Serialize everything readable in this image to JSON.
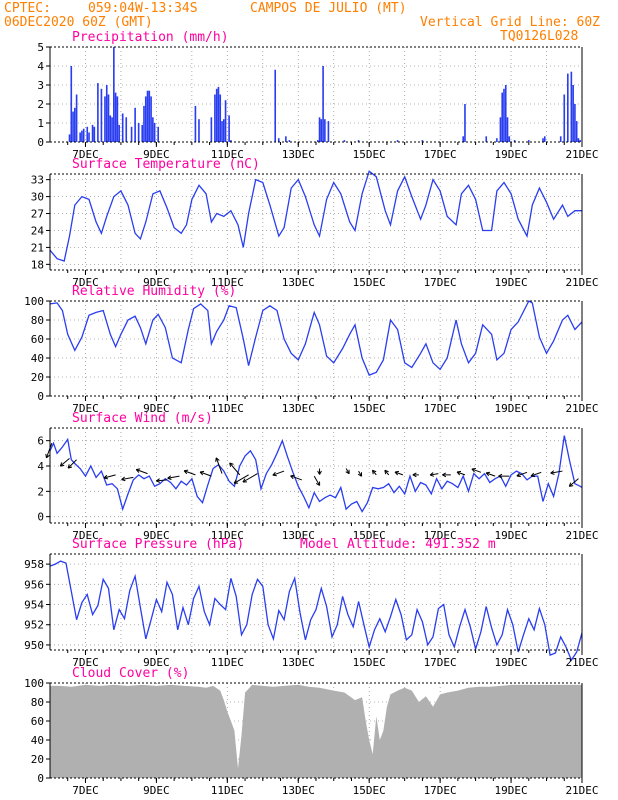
{
  "header": {
    "source": "CPTEC:",
    "coords": "059:04W-13:34S",
    "station": "CAMPOS DE JULIO (MT)",
    "run": "06DEC2020 60Z (GMT)",
    "grid_note": "Vertical Grid Line: 60Z",
    "model": "TQ0126L028"
  },
  "time_axis": {
    "start_day": 6,
    "end_day": 21,
    "tick_labels": [
      "7DEC",
      "9DEC",
      "11DEC",
      "13DEC",
      "15DEC",
      "17DEC",
      "19DEC",
      "21DEC"
    ]
  },
  "colors": {
    "series": "#2a3ef0",
    "titles": "#ff00a0",
    "header": "#ff7f00",
    "cloud": "#b0b0b0"
  },
  "chart_data": [
    {
      "id": "precip",
      "type": "bar",
      "title": "Precipitation (mm/h)",
      "ylim": [
        0,
        5
      ],
      "yticks": [
        0,
        1,
        2,
        3,
        4,
        5
      ],
      "x": [
        6.55,
        6.6,
        6.65,
        6.7,
        6.75,
        6.85,
        6.9,
        6.95,
        7.05,
        7.1,
        7.2,
        7.25,
        7.35,
        7.45,
        7.55,
        7.6,
        7.65,
        7.7,
        7.75,
        7.8,
        7.85,
        7.9,
        7.95,
        8.05,
        8.15,
        8.3,
        8.4,
        8.5,
        8.6,
        8.65,
        8.7,
        8.75,
        8.8,
        8.85,
        8.9,
        8.95,
        9.05,
        10.1,
        10.2,
        10.55,
        10.65,
        10.7,
        10.75,
        10.8,
        10.85,
        10.9,
        10.95,
        11.05,
        11.1,
        12.35,
        12.45,
        12.65,
        12.75,
        13.55,
        13.6,
        13.65,
        13.7,
        13.75,
        13.85,
        14.3,
        14.7,
        15.8,
        16.5,
        17.65,
        17.7,
        18.3,
        18.6,
        18.7,
        18.75,
        18.8,
        18.85,
        18.9,
        18.95,
        19.1,
        19.5,
        19.9,
        19.95,
        20.4,
        20.5,
        20.6,
        20.7,
        20.75,
        20.8,
        20.85,
        20.9,
        20.95
      ],
      "values": [
        0.4,
        4.0,
        1.6,
        1.8,
        2.5,
        0.5,
        0.6,
        0.7,
        0.8,
        0.5,
        0.9,
        0.8,
        3.1,
        2.8,
        2.4,
        3.0,
        2.5,
        1.4,
        1.3,
        5.0,
        2.6,
        2.4,
        0.9,
        1.5,
        1.3,
        0.8,
        1.8,
        1.0,
        0.9,
        1.9,
        2.4,
        2.7,
        2.7,
        2.4,
        1.3,
        1.0,
        0.8,
        1.9,
        1.2,
        1.3,
        2.5,
        2.8,
        2.9,
        2.5,
        1.1,
        1.2,
        2.2,
        1.4,
        0.1,
        3.8,
        0.2,
        0.3,
        0.1,
        0.1,
        1.3,
        1.2,
        4.0,
        1.2,
        1.1,
        0.1,
        0.1,
        0.1,
        0.1,
        0.3,
        2.0,
        0.3,
        0.2,
        1.3,
        2.6,
        2.8,
        3.0,
        1.3,
        0.3,
        0.1,
        0.1,
        0.2,
        0.3,
        0.3,
        2.5,
        3.6,
        3.7,
        3.0,
        2.0,
        1.1,
        0.2,
        0.1
      ]
    },
    {
      "id": "temp",
      "type": "line",
      "title": "Surface Temperature (nC)",
      "ylim": [
        17,
        34
      ],
      "yticks": [
        18,
        21,
        24,
        27,
        30,
        33
      ],
      "x": [
        6.0,
        6.2,
        6.4,
        6.55,
        6.7,
        6.9,
        7.1,
        7.3,
        7.45,
        7.6,
        7.8,
        8.0,
        8.2,
        8.4,
        8.55,
        8.7,
        8.9,
        9.1,
        9.3,
        9.5,
        9.7,
        9.85,
        10.0,
        10.2,
        10.4,
        10.55,
        10.7,
        10.9,
        11.1,
        11.3,
        11.45,
        11.6,
        11.8,
        12.0,
        12.2,
        12.45,
        12.6,
        12.8,
        13.0,
        13.2,
        13.45,
        13.6,
        13.8,
        14.0,
        14.2,
        14.45,
        14.6,
        14.8,
        15.0,
        15.2,
        15.45,
        15.6,
        15.8,
        16.0,
        16.2,
        16.45,
        16.6,
        16.8,
        17.0,
        17.2,
        17.45,
        17.6,
        17.8,
        18.0,
        18.2,
        18.45,
        18.6,
        18.8,
        19.0,
        19.2,
        19.45,
        19.6,
        19.8,
        20.0,
        20.2,
        20.45,
        20.6,
        20.8,
        21.0
      ],
      "values": [
        20.5,
        19.0,
        18.6,
        23.0,
        28.5,
        30.0,
        29.5,
        25.5,
        23.5,
        26.5,
        30.0,
        31.0,
        28.5,
        23.5,
        22.5,
        25.5,
        30.5,
        31.0,
        28.0,
        24.5,
        23.5,
        25.0,
        29.5,
        32.0,
        30.5,
        25.5,
        27.0,
        26.5,
        27.5,
        25.0,
        21.0,
        27.0,
        33.0,
        32.5,
        28.5,
        23.0,
        24.5,
        31.5,
        33.0,
        30.0,
        25.0,
        23.0,
        29.5,
        32.5,
        30.5,
        25.5,
        24.0,
        30.5,
        34.5,
        33.5,
        27.5,
        25.0,
        31.0,
        33.5,
        30.0,
        26.0,
        28.5,
        33.0,
        31.0,
        26.5,
        25.0,
        30.5,
        32.0,
        29.5,
        24.0,
        24.0,
        31.0,
        32.5,
        30.5,
        26.0,
        23.0,
        28.5,
        31.5,
        29.0,
        26.0,
        28.5,
        26.5,
        27.5,
        27.5
      ]
    },
    {
      "id": "rh",
      "type": "line",
      "title": "Relative Humidity (%)",
      "ylim": [
        0,
        100
      ],
      "yticks": [
        0,
        20,
        40,
        60,
        80,
        100
      ],
      "x": [
        6.0,
        6.2,
        6.35,
        6.5,
        6.7,
        6.9,
        7.1,
        7.3,
        7.5,
        7.7,
        7.85,
        8.0,
        8.2,
        8.4,
        8.55,
        8.7,
        8.9,
        9.05,
        9.25,
        9.45,
        9.7,
        9.9,
        10.05,
        10.25,
        10.45,
        10.55,
        10.7,
        10.9,
        11.05,
        11.25,
        11.45,
        11.6,
        11.8,
        12.0,
        12.2,
        12.4,
        12.6,
        12.8,
        13.0,
        13.2,
        13.45,
        13.6,
        13.8,
        14.0,
        14.25,
        14.45,
        14.6,
        14.8,
        15.0,
        15.2,
        15.4,
        15.6,
        15.8,
        16.0,
        16.2,
        16.45,
        16.6,
        16.8,
        17.0,
        17.2,
        17.45,
        17.6,
        17.8,
        18.0,
        18.2,
        18.45,
        18.6,
        18.8,
        19.0,
        19.2,
        19.5,
        19.6,
        19.8,
        20.0,
        20.2,
        20.45,
        20.6,
        20.8,
        21.0
      ],
      "values": [
        97,
        98,
        90,
        65,
        48,
        62,
        85,
        88,
        90,
        65,
        52,
        65,
        80,
        84,
        72,
        55,
        80,
        86,
        72,
        40,
        35,
        70,
        92,
        97,
        90,
        55,
        68,
        80,
        95,
        93,
        60,
        32,
        62,
        90,
        95,
        90,
        60,
        45,
        38,
        55,
        88,
        75,
        42,
        35,
        50,
        65,
        75,
        40,
        22,
        25,
        38,
        80,
        70,
        35,
        30,
        45,
        55,
        35,
        28,
        40,
        80,
        55,
        35,
        45,
        75,
        65,
        38,
        45,
        70,
        78,
        100,
        98,
        62,
        45,
        58,
        80,
        85,
        70,
        78
      ]
    },
    {
      "id": "wind",
      "type": "line",
      "title": "Surface Wind (m/s)",
      "ylim": [
        -0.5,
        7
      ],
      "yticks": [
        0,
        2,
        4,
        6
      ],
      "x": [
        6.0,
        6.1,
        6.2,
        6.35,
        6.5,
        6.6,
        6.7,
        6.85,
        7.0,
        7.15,
        7.3,
        7.45,
        7.6,
        7.75,
        7.9,
        8.05,
        8.2,
        8.35,
        8.5,
        8.65,
        8.8,
        8.95,
        9.1,
        9.25,
        9.4,
        9.55,
        9.7,
        9.85,
        10.0,
        10.15,
        10.3,
        10.45,
        10.6,
        10.75,
        10.9,
        11.05,
        11.2,
        11.35,
        11.5,
        11.65,
        11.8,
        11.95,
        12.1,
        12.25,
        12.4,
        12.55,
        12.7,
        12.85,
        13.0,
        13.15,
        13.3,
        13.45,
        13.6,
        13.75,
        13.9,
        14.05,
        14.2,
        14.35,
        14.5,
        14.65,
        14.8,
        14.95,
        15.1,
        15.25,
        15.4,
        15.55,
        15.7,
        15.85,
        16.0,
        16.15,
        16.3,
        16.45,
        16.6,
        16.75,
        16.9,
        17.05,
        17.2,
        17.35,
        17.5,
        17.65,
        17.8,
        17.95,
        18.1,
        18.25,
        18.4,
        18.55,
        18.7,
        18.85,
        19.0,
        19.15,
        19.3,
        19.45,
        19.6,
        19.75,
        19.9,
        20.05,
        20.2,
        20.35,
        20.5,
        20.65,
        20.8,
        20.95,
        21.0
      ],
      "values": [
        5.2,
        5.8,
        5.0,
        5.5,
        6.1,
        4.5,
        4.2,
        3.8,
        3.2,
        4.0,
        3.1,
        3.6,
        2.5,
        2.6,
        2.2,
        0.6,
        1.8,
        2.9,
        3.3,
        3.0,
        3.2,
        2.4,
        2.6,
        3.0,
        2.7,
        2.2,
        2.8,
        2.5,
        3.0,
        1.6,
        1.1,
        2.5,
        3.8,
        4.1,
        3.6,
        2.8,
        2.4,
        4.0,
        4.8,
        5.2,
        4.5,
        2.2,
        3.4,
        4.1,
        5.0,
        6.0,
        4.7,
        3.5,
        2.4,
        1.6,
        0.7,
        1.9,
        1.2,
        1.5,
        1.7,
        1.5,
        2.3,
        0.6,
        1.0,
        1.2,
        0.4,
        1.1,
        2.3,
        2.2,
        2.3,
        2.6,
        1.9,
        2.4,
        1.8,
        3.2,
        2.0,
        2.7,
        2.5,
        1.8,
        3.0,
        2.2,
        2.8,
        2.6,
        2.3,
        3.2,
        2.0,
        3.4,
        3.0,
        3.4,
        2.7,
        3.0,
        3.2,
        2.4,
        3.3,
        3.6,
        3.4,
        2.9,
        3.2,
        3.2,
        1.2,
        2.6,
        1.6,
        3.4,
        6.4,
        4.4,
        2.6,
        2.4,
        2.3
      ],
      "arrows": {
        "x": [
          6.05,
          6.55,
          6.75,
          7.85,
          8.35,
          8.75,
          9.3,
          9.65,
          10.1,
          10.55,
          10.85,
          11.35,
          11.6,
          11.85,
          12.6,
          13.1,
          13.45,
          13.6,
          14.35,
          14.7,
          15.2,
          15.55,
          15.95,
          16.4,
          16.95,
          17.3,
          17.7,
          18.15,
          18.55,
          18.95,
          19.45,
          19.85,
          20.45,
          20.9
        ],
        "y": [
          5.8,
          4.6,
          4.5,
          3.3,
          3.1,
          3.4,
          2.9,
          3.2,
          3.3,
          3.2,
          3.4,
          3.3,
          3.3,
          3.4,
          3.6,
          2.9,
          3.2,
          3.8,
          3.8,
          3.6,
          3.3,
          3.3,
          3.3,
          3.3,
          3.4,
          3.3,
          3.3,
          3.5,
          3.2,
          3.2,
          3.5,
          3.5,
          3.6,
          3.0
        ],
        "dir": [
          -110,
          -140,
          -135,
          -165,
          -170,
          -200,
          -175,
          -170,
          -200,
          -200,
          -250,
          -230,
          -150,
          -150,
          -160,
          -200,
          -60,
          -90,
          -60,
          -60,
          -230,
          -230,
          -200,
          -180,
          -170,
          -180,
          -200,
          -200,
          -200,
          -180,
          -160,
          -160,
          -170,
          -140
        ],
        "len": [
          1.3,
          1.0,
          1.0,
          1.0,
          1.0,
          1.0,
          0.9,
          1.0,
          1.0,
          1.0,
          1.4,
          1.3,
          1.4,
          1.4,
          1.0,
          1.0,
          0.9,
          0.5,
          0.5,
          0.5,
          0.5,
          0.5,
          0.7,
          0.5,
          0.7,
          0.7,
          0.7,
          0.8,
          0.8,
          0.9,
          0.9,
          0.9,
          1.0,
          1.0
        ]
      }
    },
    {
      "id": "pressure",
      "type": "line",
      "title": "Surface Pressure (hPa)",
      "annotation": "Model Altitude: 491.352 m",
      "ylim": [
        949.5,
        959
      ],
      "yticks": [
        950,
        952,
        954,
        956,
        958
      ],
      "x": [
        6.0,
        6.15,
        6.3,
        6.45,
        6.6,
        6.75,
        6.9,
        7.05,
        7.2,
        7.35,
        7.5,
        7.65,
        7.8,
        7.95,
        8.1,
        8.25,
        8.4,
        8.55,
        8.7,
        8.85,
        9.0,
        9.15,
        9.3,
        9.45,
        9.6,
        9.75,
        9.9,
        10.05,
        10.2,
        10.35,
        10.5,
        10.65,
        10.8,
        10.95,
        11.1,
        11.25,
        11.4,
        11.55,
        11.7,
        11.85,
        12.0,
        12.15,
        12.3,
        12.45,
        12.6,
        12.75,
        12.9,
        13.05,
        13.2,
        13.35,
        13.5,
        13.65,
        13.8,
        13.95,
        14.1,
        14.25,
        14.4,
        14.55,
        14.7,
        14.85,
        15.0,
        15.15,
        15.3,
        15.45,
        15.6,
        15.75,
        15.9,
        16.05,
        16.2,
        16.35,
        16.5,
        16.65,
        16.8,
        16.95,
        17.1,
        17.25,
        17.4,
        17.55,
        17.7,
        17.85,
        18.0,
        18.15,
        18.3,
        18.45,
        18.6,
        18.75,
        18.9,
        19.05,
        19.2,
        19.35,
        19.5,
        19.65,
        19.8,
        19.95,
        20.1,
        20.25,
        20.4,
        20.55,
        20.7,
        20.85,
        21.0
      ],
      "values": [
        957.8,
        958.0,
        958.3,
        958.1,
        955.3,
        952.5,
        954.2,
        955.0,
        953.0,
        953.9,
        956.5,
        955.6,
        951.5,
        953.5,
        952.6,
        955.4,
        956.8,
        953.7,
        950.6,
        952.5,
        954.5,
        953.3,
        956.2,
        955.0,
        951.5,
        953.7,
        952.0,
        954.6,
        955.8,
        953.3,
        952.0,
        954.6,
        954.0,
        953.5,
        956.6,
        954.8,
        951.0,
        952.0,
        955.0,
        956.5,
        955.8,
        952.0,
        950.6,
        953.4,
        952.5,
        955.3,
        956.6,
        953.2,
        950.5,
        952.5,
        953.5,
        955.6,
        953.8,
        950.8,
        952.0,
        954.8,
        953.0,
        951.8,
        954.3,
        952.0,
        949.8,
        951.5,
        952.6,
        951.3,
        952.8,
        954.5,
        953.0,
        950.5,
        951.0,
        953.5,
        952.3,
        950.0,
        950.8,
        953.6,
        954.0,
        951.0,
        949.8,
        951.8,
        953.5,
        951.8,
        949.6,
        951.3,
        953.8,
        951.7,
        950.0,
        951.0,
        953.5,
        952.0,
        949.3,
        951.0,
        952.6,
        951.5,
        953.6,
        952.0,
        949.0,
        949.2,
        950.8,
        949.8,
        948.5,
        949.3,
        951.2
      ]
    },
    {
      "id": "cloud",
      "type": "area",
      "title": "Cloud Cover (%)",
      "ylim": [
        0,
        100
      ],
      "yticks": [
        0,
        20,
        40,
        60,
        80,
        100
      ],
      "x": [
        6.0,
        6.3,
        6.6,
        7.0,
        7.4,
        7.8,
        8.2,
        8.6,
        9.0,
        9.4,
        9.8,
        10.2,
        10.4,
        10.6,
        10.8,
        10.9,
        11.0,
        11.1,
        11.2,
        11.3,
        11.4,
        11.5,
        11.7,
        12.0,
        12.3,
        12.6,
        13.0,
        13.3,
        13.6,
        14.0,
        14.3,
        14.6,
        14.8,
        14.9,
        15.0,
        15.1,
        15.2,
        15.3,
        15.4,
        15.5,
        15.6,
        15.8,
        16.0,
        16.2,
        16.4,
        16.6,
        16.8,
        17.0,
        17.2,
        17.5,
        17.8,
        18.1,
        18.4,
        18.7,
        19.0,
        19.3,
        19.6,
        19.9,
        20.2,
        20.5,
        20.8,
        21.0
      ],
      "values": [
        97,
        97,
        96,
        98,
        97,
        98,
        97,
        98,
        97,
        98,
        97,
        96,
        95,
        97,
        92,
        82,
        70,
        60,
        50,
        10,
        45,
        90,
        98,
        97,
        96,
        97,
        98,
        96,
        95,
        92,
        90,
        82,
        85,
        60,
        40,
        25,
        65,
        40,
        50,
        75,
        88,
        92,
        95,
        92,
        80,
        86,
        75,
        88,
        90,
        92,
        95,
        96,
        96,
        97,
        98,
        98,
        98,
        98,
        98,
        98,
        98,
        98
      ]
    }
  ]
}
